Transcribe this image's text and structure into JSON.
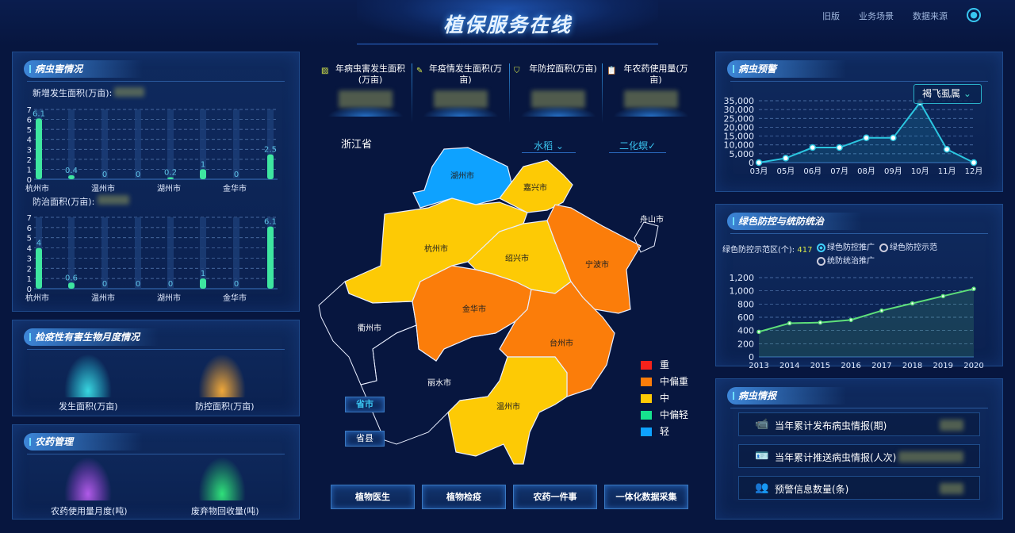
{
  "header": {
    "title": "植保服务在线",
    "nav": [
      "旧版",
      "业务场景",
      "数据来源"
    ],
    "user_icon": "user-icon"
  },
  "pest": {
    "title": "病虫害情况",
    "new_label": "新增发生面积(万亩):",
    "ctrl_label": "防治面积(万亩):"
  },
  "quarantine": {
    "title": "检疫性有害生物月度情况",
    "items": [
      "发生面积(万亩)",
      "防控面积(万亩)"
    ]
  },
  "pesticide": {
    "title": "农药管理",
    "items": [
      "农药使用量月度(吨)",
      "废弃物回收量(吨)"
    ]
  },
  "stats": [
    {
      "label": "年病虫害发生面积(万亩)",
      "icon": "hatched-square-icon"
    },
    {
      "label": "年疫情发生面积(万亩)",
      "icon": "pen-icon"
    },
    {
      "label": "年防控面积(万亩)",
      "icon": "shield-icon"
    },
    {
      "label": "年农药使用量(万亩)",
      "icon": "clipboard-icon"
    }
  ],
  "map": {
    "province": "浙江省",
    "crop": "水稻 ⌄",
    "pest": "二化螟✓",
    "scope_buttons": [
      "省市",
      "省县"
    ],
    "regions": [
      {
        "name": "湖州市",
        "level": "轻"
      },
      {
        "name": "嘉兴市",
        "level": "中"
      },
      {
        "name": "杭州市",
        "level": "中"
      },
      {
        "name": "绍兴市",
        "level": "中"
      },
      {
        "name": "宁波市",
        "level": "中偏重"
      },
      {
        "name": "舟山市",
        "level": ""
      },
      {
        "name": "金华市",
        "level": "中偏重"
      },
      {
        "name": "台州市",
        "level": "中偏重"
      },
      {
        "name": "衢州市",
        "level": ""
      },
      {
        "name": "丽水市",
        "level": ""
      },
      {
        "name": "温州市",
        "level": "中"
      }
    ],
    "legend": [
      {
        "label": "重",
        "color": "#f5221b"
      },
      {
        "label": "中偏重",
        "color": "#fb7d0a"
      },
      {
        "label": "中",
        "color": "#fdca05"
      },
      {
        "label": "中偏轻",
        "color": "#16e28e"
      },
      {
        "label": "轻",
        "color": "#0ea2ff"
      }
    ]
  },
  "bottom_buttons": [
    "植物医生",
    "植物检疫",
    "农药一件事",
    "一体化数据采集"
  ],
  "warning": {
    "title": "病虫预警",
    "dropdown": "褐飞虱属"
  },
  "green": {
    "title": "绿色防控与统防统治",
    "label": "绿色防控示范区(个):",
    "value": "417",
    "options": [
      {
        "label": "绿色防控推广",
        "selected": true
      },
      {
        "label": "绿色防控示范",
        "selected": false
      },
      {
        "label": "统防统治推广",
        "selected": false
      }
    ]
  },
  "intel": {
    "title": "病虫情报",
    "items": [
      {
        "label": "当年累计发布病虫情报(期)",
        "icon": "camera-icon"
      },
      {
        "label": "当年累计推送病虫情报(人次)",
        "icon": "id-card-icon"
      },
      {
        "label": "预警信息数量(条)",
        "icon": "users-icon"
      }
    ]
  },
  "chart_data": [
    {
      "type": "bar",
      "title": "",
      "categories": [
        "杭州市",
        "",
        "温州市",
        "",
        "湖州市",
        "",
        "金华市",
        ""
      ],
      "values": [
        6.1,
        0.4,
        0,
        0,
        0.2,
        1,
        0,
        2.5
      ],
      "ylim": [
        0,
        7
      ],
      "yticks": [
        0,
        1,
        2,
        3,
        4,
        5,
        6,
        7
      ],
      "grid": true,
      "color": "#3ee6a0"
    },
    {
      "type": "bar",
      "title": "",
      "categories": [
        "杭州市",
        "",
        "温州市",
        "",
        "湖州市",
        "",
        "金华市",
        ""
      ],
      "values": [
        4,
        0.6,
        0,
        0,
        0,
        1,
        0,
        6.1
      ],
      "ylim": [
        0,
        7
      ],
      "yticks": [
        0,
        1,
        2,
        3,
        4,
        5,
        6,
        7
      ],
      "grid": true,
      "color": "#3ee6a0"
    },
    {
      "type": "line",
      "x": [
        "03月",
        "05月",
        "06月",
        "07月",
        "08月",
        "09月",
        "10月",
        "11月",
        "12月"
      ],
      "values": [
        0,
        2500,
        8500,
        8500,
        14000,
        14000,
        34000,
        7500,
        0
      ],
      "ylim": [
        0,
        35000
      ],
      "yticks": [
        "0",
        "5,000",
        "10,000",
        "15,000",
        "20,000",
        "25,000",
        "30,000",
        "35,000"
      ],
      "grid": true,
      "color": "#2bc6e0"
    },
    {
      "type": "area",
      "x": [
        "2013",
        "2014",
        "2015",
        "2016",
        "2017",
        "2018",
        "2019",
        "2020"
      ],
      "values": [
        380,
        510,
        520,
        560,
        700,
        810,
        920,
        1030
      ],
      "ylim": [
        0,
        1200
      ],
      "yticks": [
        "0",
        "200",
        "400",
        "600",
        "800",
        "1,000",
        "1,200"
      ],
      "grid": true,
      "color": "#5ee07a"
    }
  ]
}
